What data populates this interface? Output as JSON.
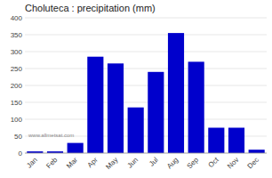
{
  "chart_data": {
    "type": "bar",
    "title": "Choluteca : precipitation (mm)",
    "categories": [
      "Jan",
      "Feb",
      "Mar",
      "Apr",
      "May",
      "Jun",
      "Jul",
      "Aug",
      "Sep",
      "Oct",
      "Nov",
      "Dec"
    ],
    "values": [
      5,
      5,
      30,
      285,
      265,
      135,
      240,
      355,
      270,
      75,
      75,
      10
    ],
    "color": "#0000CC",
    "ylim": [
      0,
      400
    ],
    "yticks": [
      0,
      50,
      100,
      150,
      200,
      250,
      300,
      350,
      400
    ],
    "grid": true,
    "annotations": [
      "www.allmetsat.com"
    ]
  }
}
